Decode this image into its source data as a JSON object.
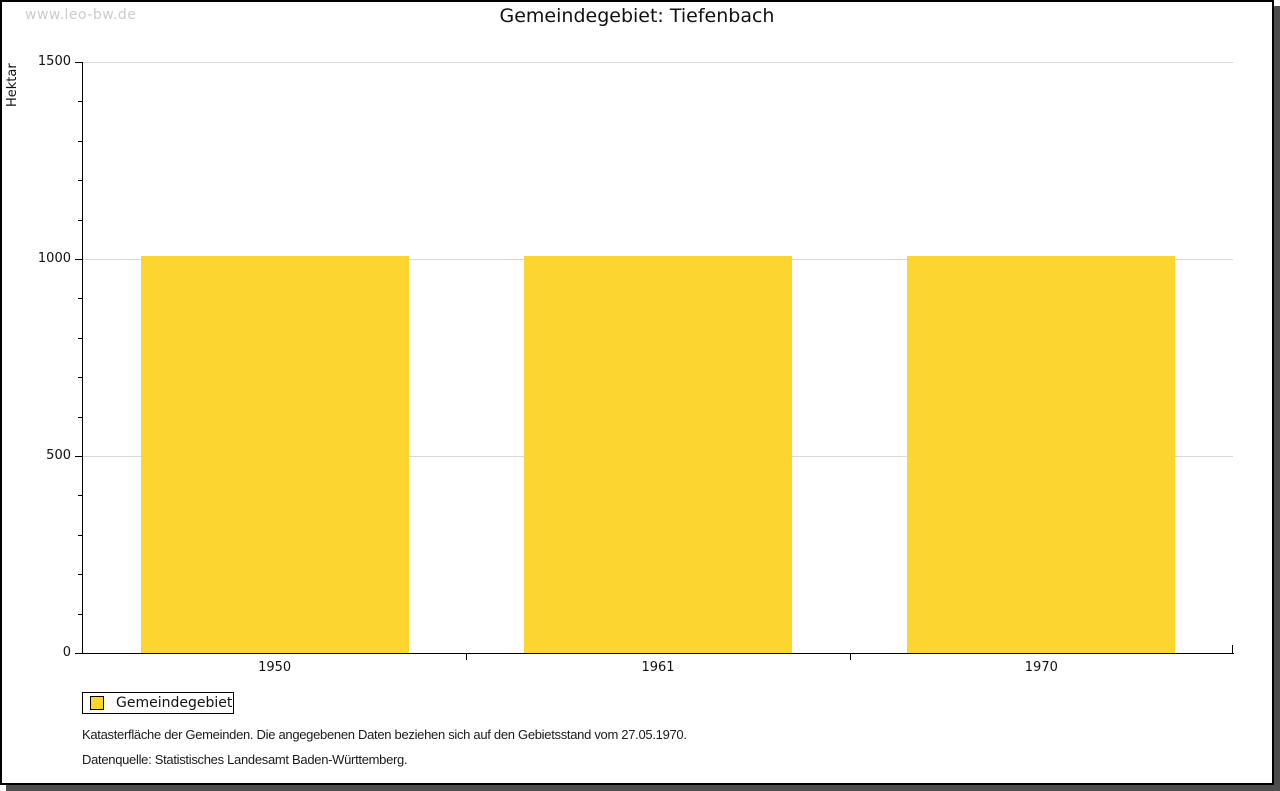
{
  "watermark": "www.leo-bw.de",
  "title": "Gemeindegebiet: Tiefenbach",
  "legend": {
    "label": "Gemeindegebiet"
  },
  "notes": {
    "line1": "Katasterfläche der Gemeinden. Die angegebenen Daten beziehen sich auf den Gebietsstand vom 27.05.1970.",
    "line2": "Datenquelle: Statistisches Landesamt Baden-Württemberg."
  },
  "colors": {
    "bar": "#fcd530",
    "grid": "#d9d9d9",
    "axis": "#000000",
    "watermark": "#cccccc",
    "frame_shadow": "#4e4e4e"
  },
  "chart_data": {
    "type": "bar",
    "title": "Gemeindegebiet: Tiefenbach",
    "categories": [
      "1950",
      "1961",
      "1970"
    ],
    "values": [
      1008,
      1008,
      1008
    ],
    "series_name": "Gemeindegebiet",
    "xlabel": "",
    "ylabel": "Hektar",
    "ylim": [
      0,
      1500
    ],
    "ytick_major_step": 500,
    "ytick_minor_step": 100,
    "ytick_labels": [
      "0",
      "500",
      "1000",
      "1500"
    ],
    "grid": "horizontal-major",
    "legend_position": "bottom-left",
    "bar_color": "#fcd530"
  }
}
